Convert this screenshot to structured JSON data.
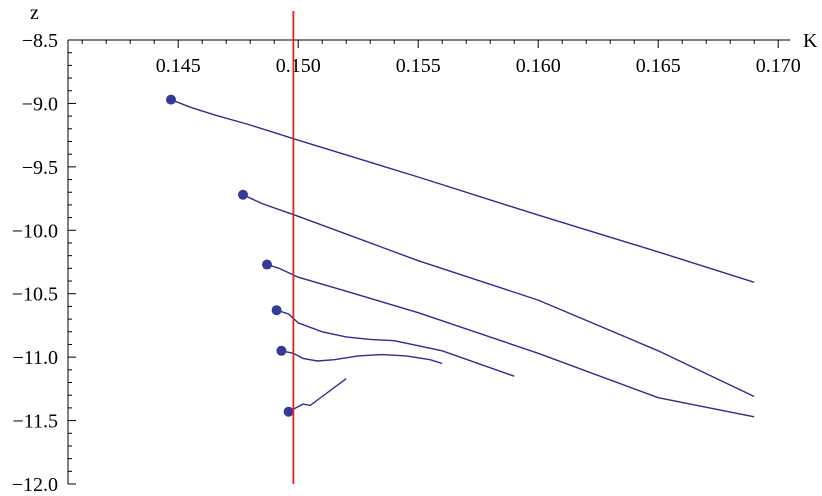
{
  "chart_data": {
    "type": "line",
    "xlabel": "K",
    "ylabel": "z",
    "xlim": [
      0.14,
      0.17
    ],
    "ylim": [
      -12.0,
      -8.5
    ],
    "x_ticks": [
      0.145,
      0.15,
      0.155,
      0.16,
      0.165,
      0.17
    ],
    "x_tick_labels": [
      "0.145",
      "0.150",
      "0.155",
      "0.160",
      "0.165",
      "0.170"
    ],
    "y_ticks": [
      -8.5,
      -9.0,
      -9.5,
      -10.0,
      -10.5,
      -11.0,
      -11.5,
      -12.0
    ],
    "y_tick_labels": [
      "−8.5",
      "−9.0",
      "−9.5",
      "−10.0",
      "−10.5",
      "−11.0",
      "−11.5",
      "−12.0"
    ],
    "reference_line": {
      "orientation": "vertical",
      "x": 0.1498,
      "color": "#e2231a"
    },
    "colors": {
      "series": "#2b2e8f",
      "reference": "#e2231a",
      "axis": "#000000"
    },
    "grid": false,
    "series": [
      {
        "start_point": [
          0.1447,
          -8.97
        ],
        "points": [
          [
            0.1447,
            -8.97
          ],
          [
            0.1455,
            -9.03
          ],
          [
            0.1465,
            -9.09
          ],
          [
            0.148,
            -9.17
          ],
          [
            0.15,
            -9.29
          ],
          [
            0.155,
            -9.58
          ],
          [
            0.16,
            -9.88
          ],
          [
            0.165,
            -10.17
          ],
          [
            0.169,
            -10.41
          ]
        ]
      },
      {
        "start_point": [
          0.1477,
          -9.72
        ],
        "points": [
          [
            0.1477,
            -9.72
          ],
          [
            0.1485,
            -9.79
          ],
          [
            0.15,
            -9.89
          ],
          [
            0.155,
            -10.24
          ],
          [
            0.16,
            -10.55
          ],
          [
            0.165,
            -10.95
          ],
          [
            0.169,
            -11.31
          ]
        ]
      },
      {
        "start_point": [
          0.1487,
          -10.27
        ],
        "points": [
          [
            0.1487,
            -10.27
          ],
          [
            0.1492,
            -10.3
          ],
          [
            0.15,
            -10.37
          ],
          [
            0.152,
            -10.48
          ],
          [
            0.155,
            -10.65
          ],
          [
            0.16,
            -10.97
          ],
          [
            0.165,
            -11.32
          ],
          [
            0.169,
            -11.47
          ]
        ]
      },
      {
        "start_point": [
          0.1491,
          -10.63
        ],
        "points": [
          [
            0.1491,
            -10.63
          ],
          [
            0.1496,
            -10.66
          ],
          [
            0.15,
            -10.73
          ],
          [
            0.151,
            -10.8
          ],
          [
            0.152,
            -10.84
          ],
          [
            0.153,
            -10.86
          ],
          [
            0.154,
            -10.87
          ],
          [
            0.156,
            -10.95
          ],
          [
            0.159,
            -11.15
          ]
        ]
      },
      {
        "start_point": [
          0.1493,
          -10.95
        ],
        "points": [
          [
            0.1493,
            -10.95
          ],
          [
            0.1498,
            -10.97
          ],
          [
            0.1502,
            -11.01
          ],
          [
            0.1508,
            -11.03
          ],
          [
            0.1515,
            -11.02
          ],
          [
            0.1525,
            -10.99
          ],
          [
            0.1535,
            -10.98
          ],
          [
            0.1545,
            -10.99
          ],
          [
            0.1555,
            -11.02
          ],
          [
            0.156,
            -11.05
          ]
        ]
      },
      {
        "start_point": [
          0.1496,
          -11.43
        ],
        "points": [
          [
            0.1496,
            -11.43
          ],
          [
            0.1499,
            -11.4
          ],
          [
            0.1502,
            -11.37
          ],
          [
            0.1505,
            -11.38
          ],
          [
            0.151,
            -11.31
          ],
          [
            0.152,
            -11.17
          ]
        ]
      }
    ]
  }
}
